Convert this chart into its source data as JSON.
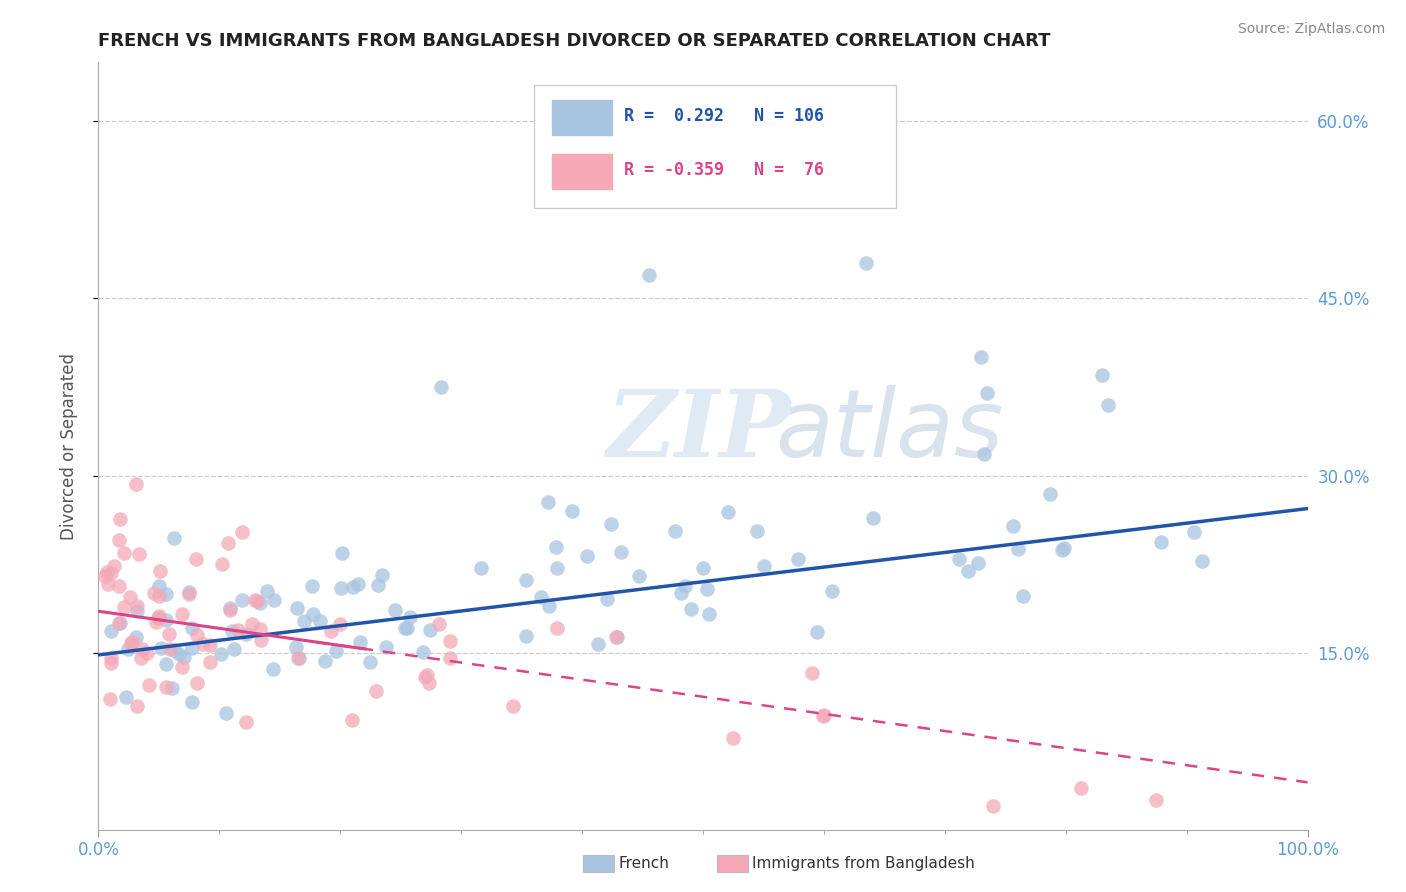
{
  "title": "FRENCH VS IMMIGRANTS FROM BANGLADESH DIVORCED OR SEPARATED CORRELATION CHART",
  "source": "Source: ZipAtlas.com",
  "ylabel": "Divorced or Separated",
  "x_min": 0.0,
  "x_max": 1.0,
  "y_min": 0.0,
  "y_max": 0.65,
  "y_ticks": [
    0.15,
    0.3,
    0.45,
    0.6
  ],
  "y_tick_labels": [
    "15.0%",
    "30.0%",
    "45.0%",
    "60.0%"
  ],
  "legend_blue_R": "0.292",
  "legend_blue_N": "106",
  "legend_pink_R": "-0.359",
  "legend_pink_N": "76",
  "blue_color": "#a8c4e0",
  "pink_color": "#f4a8b8",
  "blue_line_color": "#2255aa",
  "pink_line_color": "#dd4488",
  "watermark_zip": "ZIP",
  "watermark_atlas": "atlas",
  "tick_color": "#5b9bd5",
  "grid_color": "#cccccc",
  "title_color": "#222222",
  "source_color": "#888888",
  "ylabel_color": "#555555"
}
